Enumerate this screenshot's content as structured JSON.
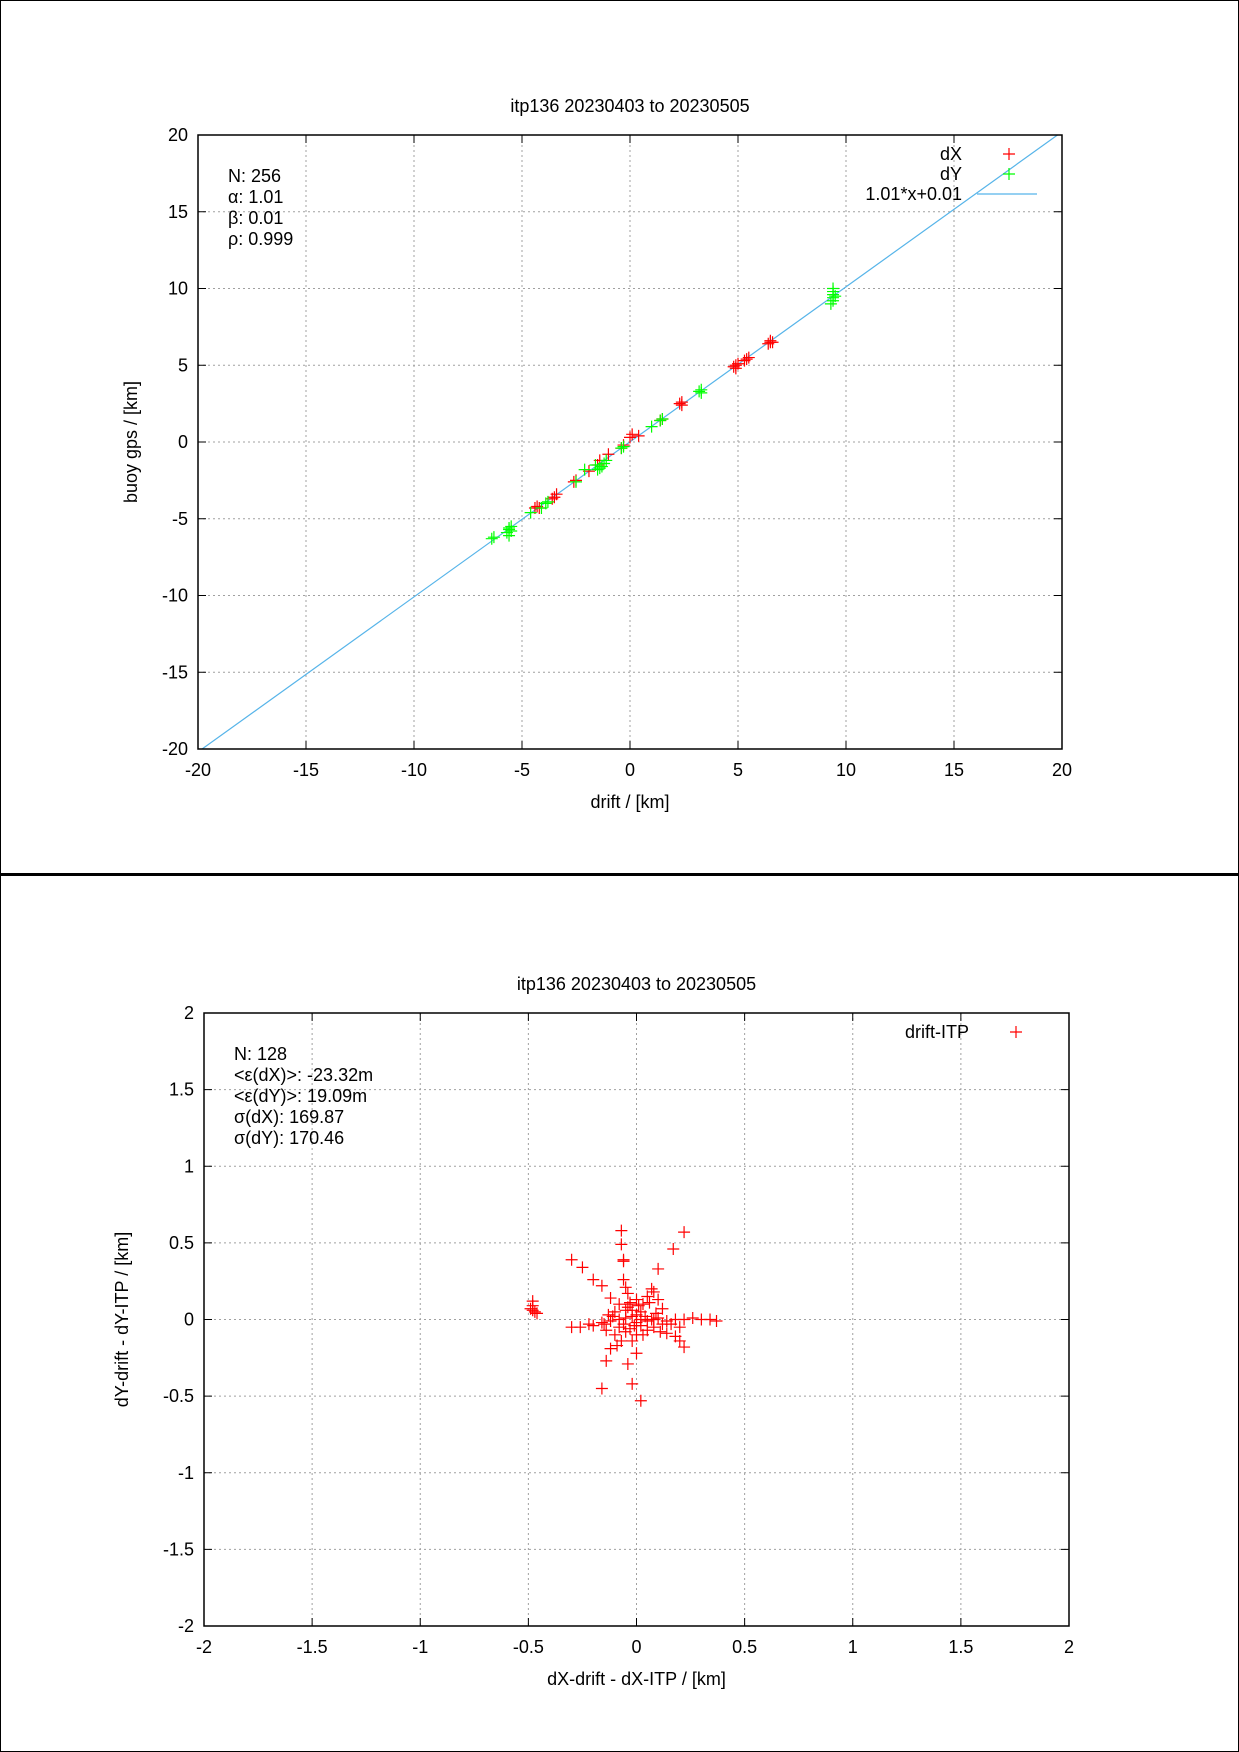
{
  "chart_data": [
    {
      "type": "scatter",
      "title": "itp136 20230403 to 20230505",
      "xlabel": "drift / [km]",
      "ylabel": "buoy gps / [km]",
      "xlim": [
        -20,
        20
      ],
      "ylim": [
        -20,
        20
      ],
      "xticks": [
        -20,
        -15,
        -10,
        -5,
        0,
        5,
        10,
        15,
        20
      ],
      "yticks": [
        -20,
        -15,
        -10,
        -5,
        0,
        5,
        10,
        15,
        20
      ],
      "grid": true,
      "legend_position": "top-right",
      "stats": [
        "N: 256",
        "α: 1.01",
        "β: 0.01",
        "ρ: 0.999"
      ],
      "fit_line": {
        "label": "1.01*x+0.01",
        "slope": 1.01,
        "intercept": 0.01,
        "color": "#56b4e9"
      },
      "series": [
        {
          "name": "dX",
          "color": "#ff0000",
          "points": [
            [
              6.5,
              6.6
            ],
            [
              6.5,
              6.5
            ],
            [
              6.4,
              6.4
            ],
            [
              6.6,
              6.5
            ],
            [
              5.4,
              5.4
            ],
            [
              5.5,
              5.5
            ],
            [
              5.3,
              5.3
            ],
            [
              4.9,
              5.0
            ],
            [
              4.8,
              4.9
            ],
            [
              5.0,
              5.1
            ],
            [
              4.9,
              4.8
            ],
            [
              2.4,
              2.6
            ],
            [
              2.3,
              2.5
            ],
            [
              2.4,
              2.4
            ],
            [
              1.5,
              1.5
            ],
            [
              1.4,
              1.4
            ],
            [
              0.4,
              0.4
            ],
            [
              0.1,
              0.5
            ],
            [
              0.0,
              0.3
            ],
            [
              -0.3,
              -0.2
            ],
            [
              -0.4,
              -0.4
            ],
            [
              -1.0,
              -0.8
            ],
            [
              -1.4,
              -1.2
            ],
            [
              -1.5,
              -1.5
            ],
            [
              -1.9,
              -1.9
            ],
            [
              -2.5,
              -2.5
            ],
            [
              -2.6,
              -2.6
            ],
            [
              -3.5,
              -3.6
            ],
            [
              -3.6,
              -3.7
            ],
            [
              -3.4,
              -3.4
            ],
            [
              -4.3,
              -4.2
            ],
            [
              -4.2,
              -4.3
            ],
            [
              -4.4,
              -4.3
            ]
          ]
        },
        {
          "name": "dY",
          "color": "#00ff00",
          "points": [
            [
              9.4,
              10.0
            ],
            [
              9.4,
              9.8
            ],
            [
              9.4,
              9.6
            ],
            [
              9.4,
              9.4
            ],
            [
              9.4,
              9.2
            ],
            [
              9.3,
              9.0
            ],
            [
              9.5,
              9.5
            ],
            [
              3.3,
              3.4
            ],
            [
              3.2,
              3.3
            ],
            [
              3.3,
              3.2
            ],
            [
              1.5,
              1.5
            ],
            [
              1.4,
              1.4
            ],
            [
              1.0,
              1.0
            ],
            [
              -0.3,
              -0.3
            ],
            [
              -0.4,
              -0.4
            ],
            [
              -1.1,
              -1.2
            ],
            [
              -1.2,
              -1.4
            ],
            [
              -1.3,
              -1.6
            ],
            [
              -1.4,
              -1.7
            ],
            [
              -1.5,
              -1.8
            ],
            [
              -1.6,
              -1.5
            ],
            [
              -2.1,
              -1.8
            ],
            [
              -2.5,
              -2.6
            ],
            [
              -3.8,
              -3.9
            ],
            [
              -3.9,
              -4.0
            ],
            [
              -4.1,
              -4.3
            ],
            [
              -4.6,
              -4.6
            ],
            [
              -5.5,
              -5.5
            ],
            [
              -5.6,
              -5.6
            ],
            [
              -5.5,
              -5.8
            ],
            [
              -5.7,
              -5.9
            ],
            [
              -5.6,
              -6.1
            ],
            [
              -5.6,
              -5.7
            ],
            [
              -6.3,
              -6.2
            ],
            [
              -6.4,
              -6.3
            ]
          ]
        }
      ]
    },
    {
      "type": "scatter",
      "title": "itp136 20230403 to 20230505",
      "xlabel": "dX-drift - dX-ITP / [km]",
      "ylabel": "dY-drift - dY-ITP / [km]",
      "xlim": [
        -2,
        2
      ],
      "ylim": [
        -2,
        2
      ],
      "xticks": [
        -2,
        -1.5,
        -1,
        -0.5,
        0,
        0.5,
        1,
        1.5,
        2
      ],
      "yticks": [
        -2,
        -1.5,
        -1,
        -0.5,
        0,
        0.5,
        1,
        1.5,
        2
      ],
      "grid": true,
      "legend_position": "top-right",
      "stats": [
        "N: 128",
        "<ε(dX)>:  -23.32m",
        "<ε(dY)>: 19.09m",
        "σ(dX):  169.87",
        "σ(dY):  170.46"
      ],
      "series": [
        {
          "name": "drift-ITP",
          "color": "#ff0000",
          "points": [
            [
              -0.48,
              0.12
            ],
            [
              -0.48,
              0.09
            ],
            [
              -0.49,
              0.07
            ],
            [
              -0.47,
              0.05
            ],
            [
              -0.46,
              0.04
            ],
            [
              -0.48,
              0.06
            ],
            [
              -0.3,
              -0.05
            ],
            [
              -0.26,
              -0.05
            ],
            [
              -0.22,
              -0.03
            ],
            [
              -0.2,
              -0.04
            ],
            [
              -0.16,
              -0.02
            ],
            [
              -0.15,
              -0.03
            ],
            [
              -0.12,
              -0.01
            ],
            [
              -0.08,
              0.0
            ],
            [
              -0.05,
              0.01
            ],
            [
              -0.02,
              0.02
            ],
            [
              0.02,
              0.0
            ],
            [
              0.05,
              -0.01
            ],
            [
              0.08,
              0.0
            ],
            [
              0.1,
              0.01
            ],
            [
              0.14,
              -0.01
            ],
            [
              0.18,
              0.0
            ],
            [
              0.22,
              0.0
            ],
            [
              0.26,
              0.01
            ],
            [
              0.3,
              0.0
            ],
            [
              0.34,
              0.0
            ],
            [
              0.37,
              -0.01
            ],
            [
              -0.3,
              0.39
            ],
            [
              -0.25,
              0.34
            ],
            [
              -0.2,
              0.26
            ],
            [
              -0.16,
              0.22
            ],
            [
              -0.12,
              0.14
            ],
            [
              -0.08,
              0.1
            ],
            [
              -0.05,
              0.06
            ],
            [
              -0.07,
              0.58
            ],
            [
              -0.07,
              0.49
            ],
            [
              -0.06,
              0.39
            ],
            [
              -0.06,
              0.38
            ],
            [
              -0.06,
              0.26
            ],
            [
              -0.05,
              0.21
            ],
            [
              -0.04,
              0.17
            ],
            [
              -0.03,
              0.1
            ],
            [
              -0.02,
              0.06
            ],
            [
              0.22,
              0.57
            ],
            [
              0.17,
              0.46
            ],
            [
              0.1,
              0.33
            ],
            [
              0.07,
              0.2
            ],
            [
              0.05,
              0.15
            ],
            [
              0.03,
              0.1
            ],
            [
              0.0,
              0.13
            ],
            [
              0.08,
              0.18
            ],
            [
              0.1,
              0.13
            ],
            [
              0.12,
              0.07
            ],
            [
              0.0,
              0.03
            ],
            [
              0.02,
              0.05
            ],
            [
              -0.04,
              0.08
            ],
            [
              -0.1,
              0.05
            ],
            [
              -0.14,
              -0.07
            ],
            [
              -0.1,
              -0.1
            ],
            [
              -0.07,
              -0.14
            ],
            [
              -0.09,
              -0.17
            ],
            [
              -0.12,
              -0.19
            ],
            [
              -0.14,
              -0.27
            ],
            [
              -0.16,
              -0.45
            ],
            [
              -0.04,
              -0.29
            ],
            [
              -0.02,
              -0.42
            ],
            [
              0.02,
              -0.53
            ],
            [
              0.0,
              -0.22
            ],
            [
              -0.02,
              -0.14
            ],
            [
              0.0,
              -0.1
            ],
            [
              0.03,
              -0.1
            ],
            [
              0.05,
              -0.07
            ],
            [
              0.08,
              -0.05
            ],
            [
              0.11,
              -0.08
            ],
            [
              0.14,
              -0.09
            ],
            [
              0.18,
              -0.11
            ],
            [
              0.2,
              -0.14
            ],
            [
              0.22,
              -0.18
            ],
            [
              0.2,
              -0.05
            ],
            [
              0.16,
              -0.03
            ],
            [
              0.12,
              -0.03
            ],
            [
              0.07,
              0.0
            ],
            [
              0.04,
              0.02
            ],
            [
              -0.01,
              -0.04
            ],
            [
              -0.03,
              -0.06
            ],
            [
              -0.06,
              -0.03
            ],
            [
              -0.08,
              -0.05
            ],
            [
              -0.11,
              0.02
            ],
            [
              -0.13,
              0.03
            ],
            [
              0.01,
              0.09
            ],
            [
              -0.03,
              0.11
            ],
            [
              0.06,
              0.11
            ],
            [
              0.09,
              0.04
            ],
            [
              0.0,
              -0.02
            ],
            [
              -0.05,
              -0.08
            ],
            [
              0.02,
              -0.04
            ]
          ]
        }
      ]
    }
  ]
}
